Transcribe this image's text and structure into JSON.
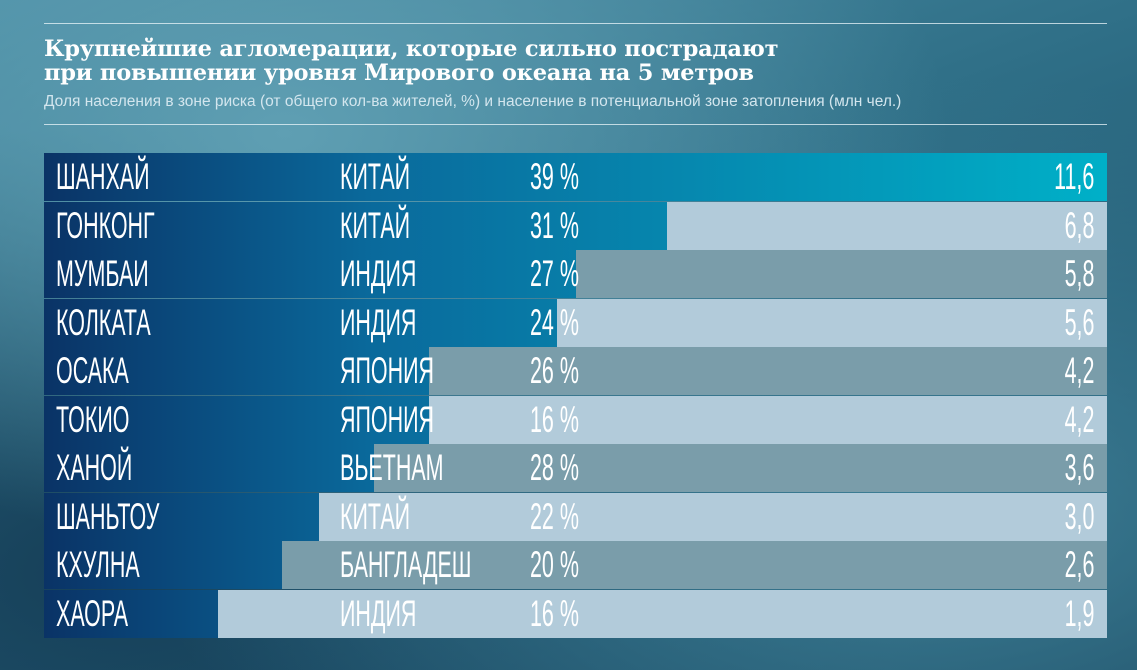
{
  "title_line1": "Крупнейшие агломерации, которые сильно пострадают",
  "title_line2": "при повышении уровня Мирового океана на 5 метров",
  "subtitle": "Доля населения в зоне риска (от общего кол-ва жителей, %) и население в потенциальной зоне затопления (млн чел.)",
  "colors": {
    "bar_start": "#0a3366",
    "bar_mid": "#0a6a9c",
    "bar_end": "#00b0c8",
    "row_bg_dark": "#7a9daa",
    "row_bg_light": "#b2cbda",
    "text": "#ffffff"
  },
  "chart_data": {
    "type": "bar",
    "title": "Крупнейшие агломерации, которые сильно пострадают при повышении уровня Мирового океана на 5 метров",
    "subtitle": "Доля населения в зоне риска (от общего кол-ва жителей, %) и население в потенциальной зоне затопления (млн чел.)",
    "categories": [
      "ШАНХАЙ",
      "ГОНКОНГ",
      "МУМБАИ",
      "КОЛКАТА",
      "ОСАКА",
      "ТОКИО",
      "ХАНОЙ",
      "ШАНЬТОУ",
      "КХУЛНА",
      "ХАОРА"
    ],
    "countries": [
      "КИТАЙ",
      "КИТАЙ",
      "ИНДИЯ",
      "ИНДИЯ",
      "ЯПОНИЯ",
      "ЯПОНИЯ",
      "ВЬЕТНАМ",
      "КИТАЙ",
      "БАНГЛАДЕШ",
      "ИНДИЯ"
    ],
    "share_labels": [
      "39 %",
      "31 %",
      "27 %",
      "24 %",
      "26 %",
      "16 %",
      "28 %",
      "22 %",
      "20 %",
      "16 %"
    ],
    "population_labels": [
      "11,6",
      "6,8",
      "5,8",
      "5,6",
      "4,2",
      "4,2",
      "3,6",
      "3,0",
      "2,6",
      "1,9"
    ],
    "series": [
      {
        "values": [
          11.6,
          6.8,
          5.8,
          5.6,
          4.2,
          4.2,
          3.6,
          3.0,
          2.6,
          1.9
        ]
      }
    ],
    "xlim": [
      0,
      11.6
    ]
  }
}
